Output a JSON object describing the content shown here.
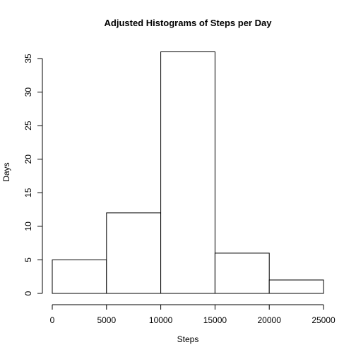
{
  "chart_data": {
    "type": "bar",
    "subtype": "histogram",
    "title": "Adjusted Histograms of Steps per Day",
    "xlabel": "Steps",
    "ylabel": "Days",
    "bins": [
      {
        "from": 0,
        "to": 5000,
        "count": 5
      },
      {
        "from": 5000,
        "to": 10000,
        "count": 12
      },
      {
        "from": 10000,
        "to": 15000,
        "count": 36
      },
      {
        "from": 15000,
        "to": 20000,
        "count": 6
      },
      {
        "from": 20000,
        "to": 25000,
        "count": 2
      }
    ],
    "xlim": [
      0,
      25000
    ],
    "ylim": [
      0,
      36
    ],
    "x_ticks": [
      0,
      5000,
      10000,
      15000,
      20000,
      25000
    ],
    "y_ticks": [
      0,
      5,
      10,
      15,
      20,
      25,
      30,
      35
    ],
    "grid": false,
    "legend": "none",
    "colors": {
      "bar_fill": "#ffffff",
      "bar_stroke": "#000000",
      "axis": "#000000"
    }
  }
}
